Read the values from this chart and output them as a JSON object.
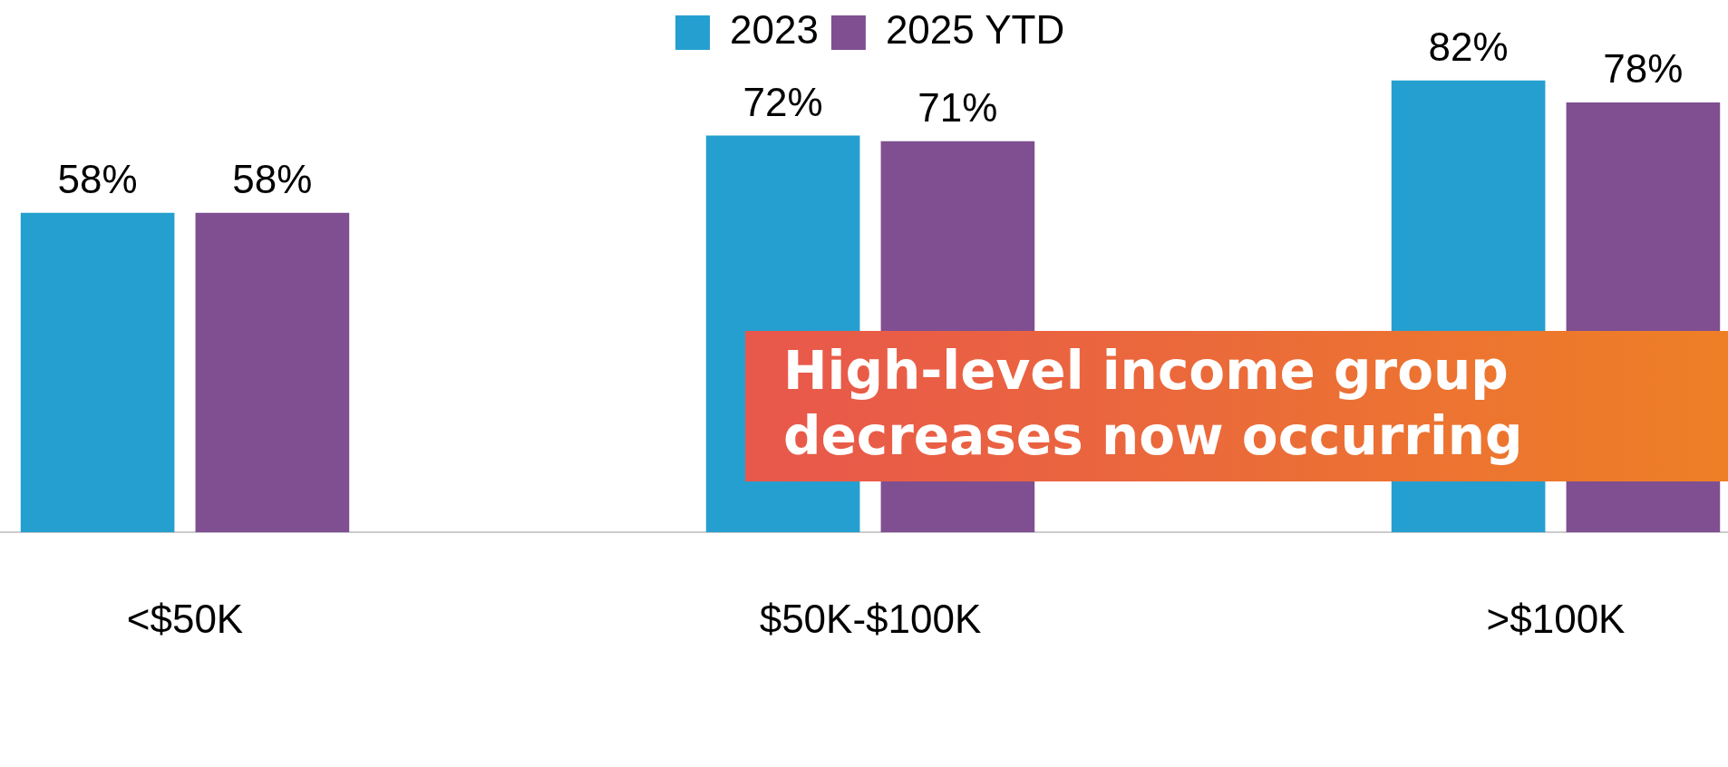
{
  "chart_data": {
    "type": "bar",
    "categories": [
      "<$50K",
      "$50K-$100K",
      ">$100K"
    ],
    "series": [
      {
        "name": "2023",
        "color": "#259fcf",
        "values": [
          58,
          72,
          82
        ],
        "value_labels": [
          "58%",
          "72%",
          "82%"
        ]
      },
      {
        "name": "2025 YTD",
        "color": "#7f4f91",
        "values": [
          58,
          71,
          78
        ],
        "value_labels": [
          "58%",
          "71%",
          "78%"
        ]
      }
    ],
    "legend": "top",
    "grid": false,
    "annotations": [
      "High-level income group decreases now occurring"
    ]
  }
}
